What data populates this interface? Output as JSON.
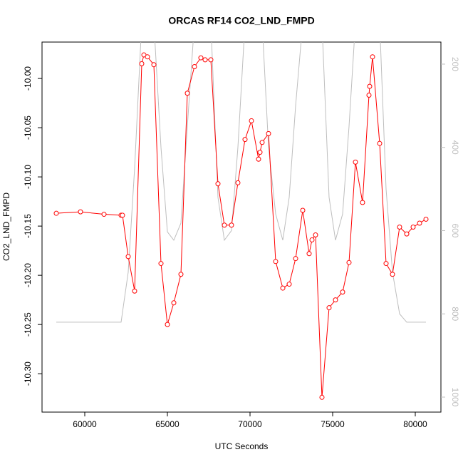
{
  "chart_data": {
    "type": "line",
    "title": "ORCAS RF14 CO2_LND_FMPD",
    "xlabel": "UTC Seconds",
    "ylabel": "CO2_LND_FMPD",
    "xlim": [
      57414,
      81552
    ],
    "xticks": [
      60000,
      65000,
      70000,
      75000,
      80000
    ],
    "ylim": [
      -10.339,
      -9.963
    ],
    "yticks": [
      {
        "value": -10.3,
        "label": "-10.30"
      },
      -10.25,
      {
        "value": -10.2,
        "label": "-10.20"
      },
      -10.15,
      {
        "value": -10.1,
        "label": "-10.10"
      },
      -10.05,
      {
        "value": -10,
        "label": "-10.00"
      }
    ],
    "y2lim": [
      1036,
      147
    ],
    "y2ticks": [
      200,
      400,
      600,
      800,
      1000
    ],
    "series": [
      {
        "color": "#bebebe",
        "axis": "y2",
        "markers": false,
        "x": [
          58276,
          62198,
          62629,
          63017,
          63448,
          64181,
          64612,
          65000,
          65388,
          65819,
          66207,
          66638,
          67629,
          68060,
          68448,
          68879,
          69267,
          69698,
          70733,
          71121,
          71552,
          71983,
          72371,
          72759,
          73190,
          74353,
          74784,
          75172,
          75603,
          75991,
          76379,
          77845,
          78233,
          78621,
          79052,
          79483,
          80647
        ],
        "values": [
          820,
          820,
          700,
          450,
          100,
          100,
          400,
          603,
          623,
          582,
          350,
          100,
          100,
          520,
          623,
          600,
          400,
          100,
          100,
          400,
          560,
          623,
          520,
          300,
          100,
          100,
          520,
          623,
          560,
          350,
          100,
          100,
          500,
          700,
          800,
          820,
          820
        ]
      },
      {
        "color": "#ff0000",
        "markers": true,
        "x": [
          58276,
          59741,
          61164,
          62198,
          62284,
          62629,
          63017,
          63448,
          63578,
          63793,
          64181,
          64612,
          65000,
          65388,
          65819,
          66207,
          66638,
          67026,
          67284,
          67629,
          68060,
          68448,
          68879,
          69267,
          69698,
          70086,
          70517,
          70603,
          70733,
          71121,
          71552,
          71983,
          72371,
          72759,
          73190,
          73578,
          73750,
          73966,
          74353,
          74784,
          75172,
          75603,
          75991,
          76379,
          76810,
          77198,
          77241,
          77414,
          77845,
          78233,
          78621,
          79052,
          79483,
          79871,
          80259,
          80647
        ],
        "values": [
          -10.137,
          -10.1355,
          -10.138,
          -10.139,
          -10.139,
          -10.181,
          -10.216,
          -9.985,
          -9.976,
          -9.978,
          -9.986,
          -10.188,
          -10.25,
          -10.228,
          -10.199,
          -10.015,
          -9.988,
          -9.979,
          -9.981,
          -9.981,
          -10.107,
          -10.149,
          -10.149,
          -10.106,
          -10.062,
          -10.043,
          -10.082,
          -10.075,
          -10.065,
          -10.056,
          -10.186,
          -10.213,
          -10.209,
          -10.183,
          -10.134,
          -10.178,
          -10.164,
          -10.159,
          -10.324,
          -10.233,
          -10.225,
          -10.217,
          -10.187,
          -10.085,
          -10.126,
          -10.017,
          -10.008,
          -9.978,
          -10.066,
          -10.188,
          -10.199,
          -10.151,
          -10.158,
          -10.151,
          -10.147,
          -10.143
        ]
      }
    ]
  }
}
